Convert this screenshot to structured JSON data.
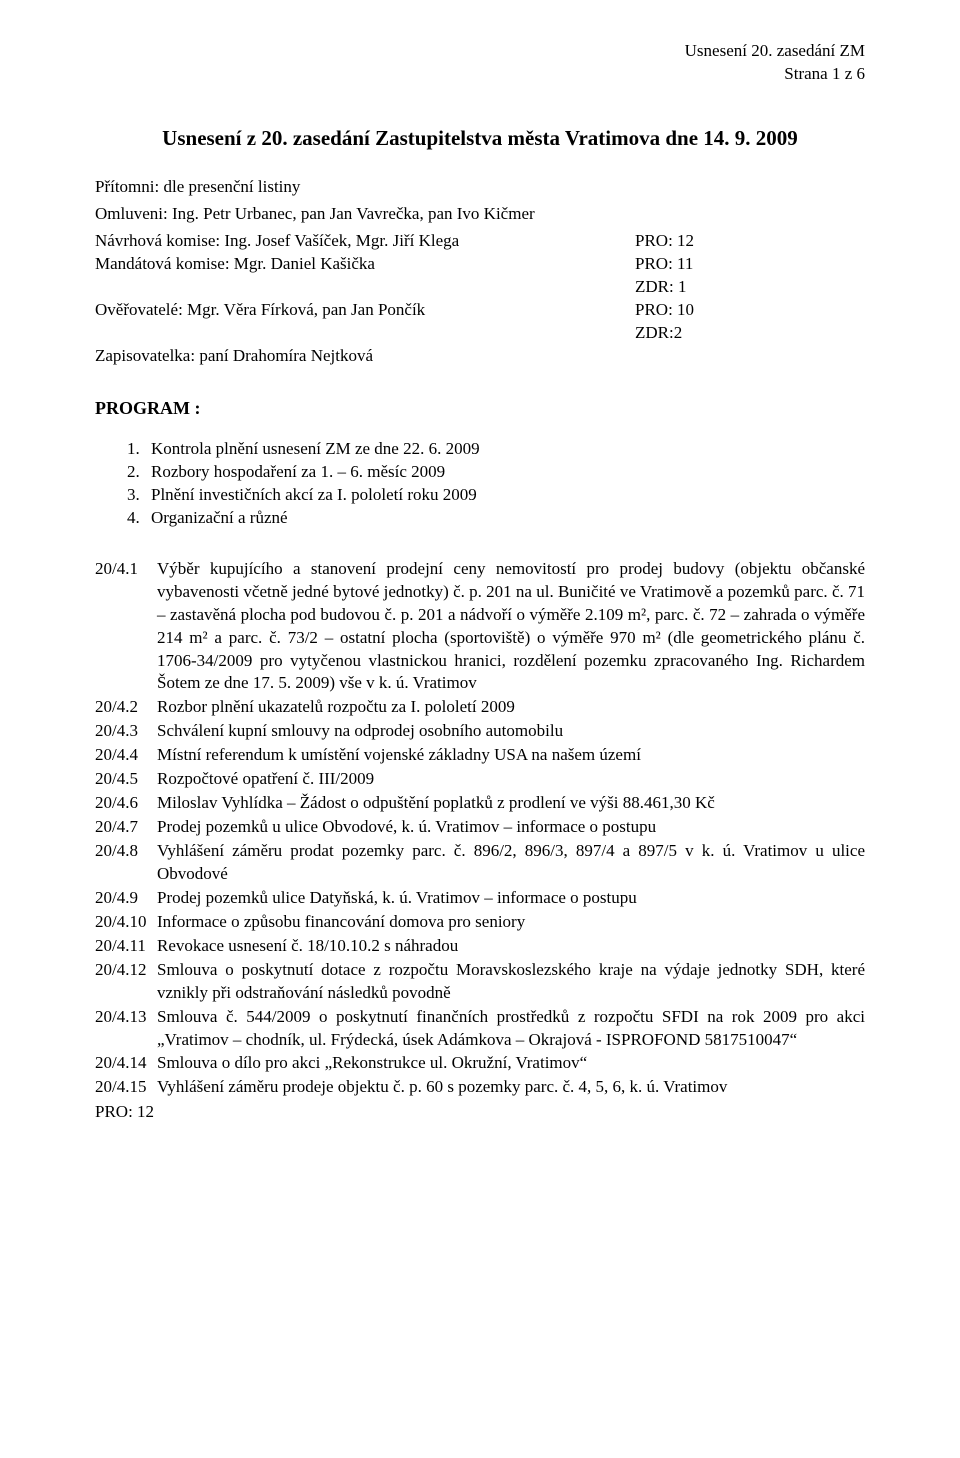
{
  "header": {
    "line1": "Usnesení 20. zasedání ZM",
    "line2": "Strana 1 z 6"
  },
  "title": "Usnesení z 20. zasedání Zastupitelstva města Vratimova dne 14. 9. 2009",
  "intro": {
    "line1": "Přítomni: dle presenční listiny",
    "line2": "Omluveni: Ing. Petr Urbanec, pan  Jan Vavrečka, pan Ivo Kičmer"
  },
  "committee": [
    {
      "left": "Návrhová komise: Ing. Josef Vašíček, Mgr. Jiří Klega",
      "right": "PRO: 12"
    },
    {
      "left": "Mandátová komise: Mgr. Daniel Kašička",
      "right": "PRO: 11"
    },
    {
      "left": "",
      "right": "ZDR: 1"
    },
    {
      "left": "Ověřovatelé: Mgr. Věra Fírková, pan Jan Pončík",
      "right": "PRO: 10"
    },
    {
      "left": "",
      "right": "ZDR:2"
    },
    {
      "left": "Zapisovatelka: paní Drahomíra Nejtková",
      "right": ""
    }
  ],
  "program_heading": "PROGRAM :",
  "program_items": [
    {
      "num": "1.",
      "text": "Kontrola plnění usnesení ZM ze dne 22. 6. 2009"
    },
    {
      "num": "2.",
      "text": "Rozbory hospodaření za 1. – 6. měsíc 2009"
    },
    {
      "num": "3.",
      "text": "Plnění investičních akcí za I. pololetí roku 2009"
    },
    {
      "num": "4.",
      "text": "Organizační a různé"
    }
  ],
  "agenda": [
    {
      "label": "20/4.1",
      "text": "Výběr kupujícího a stanovení prodejní ceny nemovitostí  pro prodej budovy (objektu občanské vybavenosti   včetně jedné bytové jednotky) č.  p. 201 na ul.  Buničité  ve Vratimově a pozemků parc.  č.  71 – zastavěná plocha pod budovou  č.  p.  201  a nádvoří o  výměře 2.109  m², parc.  č. 72 – zahrada o výměře 214 m² a parc. č. 73/2 – ostatní plocha (sportoviště)  o výměře  970  m² (dle   geometrického  plánu  č. 1706-34/2009 pro vytyčenou vlastnickou hranici,  rozdělení pozemku  zpracovaného Ing. Richardem Šotem ze dne 17. 5. 2009) vše v k. ú. Vratimov"
    },
    {
      "label": "20/4.2",
      "text": "Rozbor plnění ukazatelů rozpočtu za I. pololetí 2009"
    },
    {
      "label": "20/4.3",
      "text": "Schválení kupní smlouvy na odprodej osobního automobilu"
    },
    {
      "label": "20/4.4",
      "text": "Místní referendum k umístění vojenské základny USA na  našem území"
    },
    {
      "label": "20/4.5",
      "text": "Rozpočtové opatření č. III/2009"
    },
    {
      "label": "20/4.6",
      "text": "Miloslav Vyhlídka – Žádost o odpuštění poplatků z prodlení ve výši 88.461,30 Kč"
    },
    {
      "label": "20/4.7",
      "text": "Prodej pozemků u ulice Obvodové, k. ú. Vratimov – informace o postupu"
    },
    {
      "label": "20/4.8",
      "text": "Vyhlášení záměru prodat pozemky parc.  č.  896/2,  896/3,  897/4  a  897/5  v  k.  ú. Vratimov u ulice Obvodové"
    },
    {
      "label": "20/4.9",
      "text": "Prodej pozemků ulice Datyňská, k. ú. Vratimov – informace o postupu"
    },
    {
      "label": "20/4.10",
      "text": "Informace o způsobu financování domova pro seniory"
    },
    {
      "label": "20/4.11",
      "text": "Revokace usnesení č. 18/10.10.2 s náhradou"
    },
    {
      "label": "20/4.12",
      "text": "Smlouva  o  poskytnutí  dotace  z  rozpočtu   Moravskoslezského   kraje  na   výdaje jednotky SDH, které vznikly při odstraňování následků povodně"
    },
    {
      "label": "20/4.13",
      "text": "Smlouva č. 544/2009 o  poskytnutí finančních  prostředků z rozpočtu SFDI  na rok 2009  pro  akci  „Vratimov – chodník,  ul.  Frýdecká,  úsek  Adámkova – Okrajová - ISPROFOND  5817510047“"
    },
    {
      "label": "20/4.14",
      "text": "Smlouva o dílo pro akci „Rekonstrukce ul. Okružní, Vratimov“"
    },
    {
      "label": "20/4.15",
      "text": "Vyhlášení záměru prodeje objektu č. p. 60 s pozemky parc. č. 4, 5, 6, k. ú. Vratimov"
    }
  ],
  "pro_final": "PRO: 12"
}
